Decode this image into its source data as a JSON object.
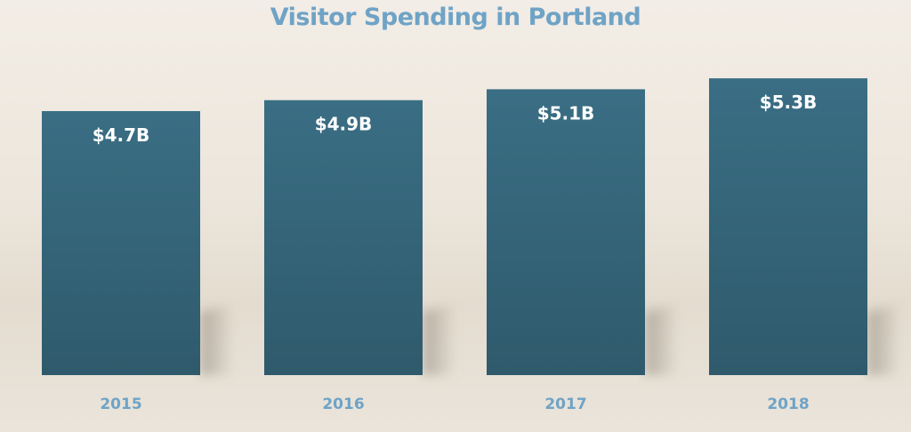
{
  "chart_data": {
    "type": "bar",
    "title": "Visitor Spending in Portland",
    "categories": [
      "2015",
      "2016",
      "2017",
      "2018"
    ],
    "values": [
      4.7,
      4.9,
      5.1,
      5.3
    ],
    "value_labels": [
      "$4.7B",
      "$4.9B",
      "$5.1B",
      "$5.3B"
    ],
    "xlabel": "",
    "ylabel": "",
    "grid": false,
    "legend": "none",
    "bar_color": "#376a80",
    "bar_color_bottom": "#2f5a6c",
    "label_color": "#6fa3c6"
  }
}
